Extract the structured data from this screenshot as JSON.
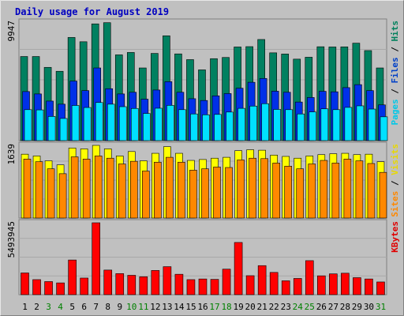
{
  "chart_data": {
    "type": "bar",
    "title": "Daily usage for August 2019",
    "categories": [
      "1",
      "2",
      "3",
      "4",
      "5",
      "6",
      "7",
      "8",
      "9",
      "10",
      "11",
      "12",
      "13",
      "14",
      "15",
      "16",
      "17",
      "18",
      "19",
      "20",
      "21",
      "22",
      "23",
      "24",
      "25",
      "26",
      "27",
      "28",
      "29",
      "30",
      "31"
    ],
    "weekend_days": [
      "3",
      "4",
      "10",
      "11",
      "17",
      "18",
      "24",
      "25",
      "31"
    ],
    "panels": [
      {
        "name": "hits-files-pages",
        "max_label": "9947",
        "ymax": 9947,
        "ylabel_parts": [
          "Pages",
          "Files",
          "Hits"
        ],
        "ylabel_colors": [
          "#00c8e8",
          "#0040c8",
          "#00805c"
        ],
        "series": [
          {
            "name": "Hits",
            "color": "#008060",
            "values": [
              7060,
              7060,
              6150,
              5820,
              8660,
              8300,
              9800,
              9900,
              7200,
              7400,
              6100,
              7320,
              8800,
              7280,
              6800,
              5940,
              6880,
              6980,
              7860,
              7890,
              8490,
              7370,
              7270,
              6840,
              7000,
              7880,
              7860,
              7870,
              8180,
              7560,
              6100
            ]
          },
          {
            "name": "Files",
            "color": "#0030e8",
            "values": [
              4120,
              3920,
              3320,
              3060,
              5000,
              4200,
              6100,
              4360,
              3920,
              4060,
              3480,
              4250,
              4950,
              4060,
              3520,
              3370,
              3760,
              3950,
              4400,
              4900,
              5220,
              4150,
              4060,
              3240,
              3620,
              4140,
              4100,
              4450,
              4700,
              4200,
              3000
            ]
          },
          {
            "name": "Pages",
            "color": "#00e0ff",
            "values": [
              2600,
              2580,
              2030,
              1860,
              2950,
              2780,
              3200,
              3060,
              2850,
              2700,
              2280,
              2720,
              2960,
              2600,
              2240,
              2170,
              2200,
              2400,
              2710,
              2900,
              3100,
              2620,
              2600,
              2240,
              2410,
              2670,
              2600,
              2790,
              2920,
              2650,
              2000
            ]
          }
        ]
      },
      {
        "name": "visits-sites",
        "max_label": "1639",
        "ymax": 1639,
        "ylabel_parts": [
          "Sites",
          "Visits"
        ],
        "ylabel_colors": [
          "#ff8800",
          "#e8d800"
        ],
        "series": [
          {
            "name": "Visits",
            "color": "#ffff00",
            "values": [
              1440,
              1400,
              1290,
              1200,
              1580,
              1560,
              1639,
              1560,
              1400,
              1500,
              1290,
              1460,
              1610,
              1460,
              1300,
              1320,
              1350,
              1370,
              1520,
              1540,
              1530,
              1420,
              1390,
              1350,
              1400,
              1430,
              1450,
              1460,
              1430,
              1440,
              1270
            ]
          },
          {
            "name": "Sites",
            "color": "#ff8800",
            "values": [
              1330,
              1270,
              1110,
              1000,
              1380,
              1330,
              1400,
              1350,
              1220,
              1280,
              1060,
              1260,
              1370,
              1260,
              1080,
              1110,
              1150,
              1140,
              1310,
              1350,
              1340,
              1240,
              1170,
              1110,
              1220,
              1300,
              1240,
              1330,
              1290,
              1230,
              1030
            ]
          }
        ]
      },
      {
        "name": "kbytes",
        "max_label": "5493945",
        "ymax": 5493945,
        "ylabel_parts": [
          "KBytes"
        ],
        "ylabel_colors": [
          "#e00000"
        ],
        "series": [
          {
            "name": "KBytes",
            "color": "#ff0000",
            "values": [
              1660000,
              1150000,
              1000000,
              900000,
              2650000,
              1270000,
              5493945,
              1880000,
              1610000,
              1480000,
              1370000,
              1850000,
              2140000,
              1560000,
              1150000,
              1200000,
              1170000,
              1950000,
              3990000,
              1450000,
              2220000,
              1700000,
              1060000,
              1240000,
              2600000,
              1440000,
              1590000,
              1640000,
              1300000,
              1200000,
              970000
            ]
          }
        ]
      }
    ],
    "grid": true,
    "legend": "right"
  }
}
